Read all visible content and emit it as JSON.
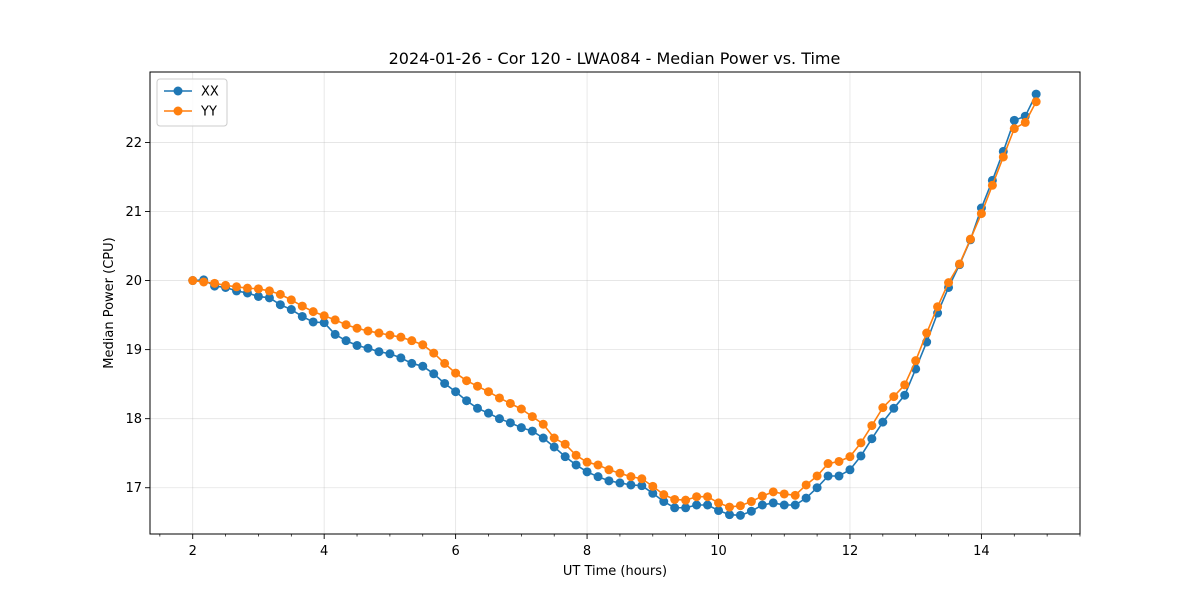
{
  "chart_data": {
    "type": "line",
    "title": "2024-01-26 - Cor 120 - LWA084 - Median Power vs. Time",
    "xlabel": "UT Time (hours)",
    "ylabel": "Median Power (CPU)",
    "xlim": [
      1.35,
      15.5
    ],
    "ylim": [
      16.33,
      23.02
    ],
    "xticks": [
      2,
      4,
      6,
      8,
      10,
      12,
      14
    ],
    "yticks": [
      17,
      18,
      19,
      20,
      21,
      22
    ],
    "grid": true,
    "legend_position": "top-left",
    "x": [
      2.0,
      2.167,
      2.333,
      2.5,
      2.667,
      2.833,
      3.0,
      3.167,
      3.333,
      3.5,
      3.667,
      3.833,
      4.0,
      4.167,
      4.333,
      4.5,
      4.667,
      4.833,
      5.0,
      5.167,
      5.333,
      5.5,
      5.667,
      5.833,
      6.0,
      6.167,
      6.333,
      6.5,
      6.667,
      6.833,
      7.0,
      7.167,
      7.333,
      7.5,
      7.667,
      7.833,
      8.0,
      8.167,
      8.333,
      8.5,
      8.667,
      8.833,
      9.0,
      9.167,
      9.333,
      9.5,
      9.667,
      9.833,
      10.0,
      10.167,
      10.333,
      10.5,
      10.667,
      10.833,
      11.0,
      11.167,
      11.333,
      11.5,
      11.667,
      11.833,
      12.0,
      12.167,
      12.333,
      12.5,
      12.667,
      12.833,
      13.0,
      13.167,
      13.333,
      13.5,
      13.667,
      13.833,
      14.0,
      14.167,
      14.333,
      14.5,
      14.667,
      14.833
    ],
    "series": [
      {
        "name": "XX",
        "color": "#1f77b4",
        "values": [
          20.0,
          20.01,
          19.92,
          19.9,
          19.85,
          19.82,
          19.77,
          19.75,
          19.65,
          19.58,
          19.48,
          19.4,
          19.39,
          19.22,
          19.13,
          19.06,
          19.02,
          18.97,
          18.94,
          18.88,
          18.8,
          18.76,
          18.65,
          18.51,
          18.39,
          18.26,
          18.15,
          18.08,
          18.0,
          17.94,
          17.87,
          17.82,
          17.72,
          17.59,
          17.45,
          17.33,
          17.23,
          17.16,
          17.1,
          17.07,
          17.04,
          17.03,
          16.92,
          16.8,
          16.71,
          16.71,
          16.75,
          16.75,
          16.67,
          16.61,
          16.6,
          16.66,
          16.75,
          16.78,
          16.75,
          16.75,
          16.85,
          17.0,
          17.17,
          17.17,
          17.26,
          17.46,
          17.71,
          17.95,
          18.15,
          18.34,
          18.72,
          19.11,
          19.53,
          19.9,
          20.23,
          20.59,
          21.05,
          21.45,
          21.87,
          22.32,
          22.38,
          22.7
        ]
      },
      {
        "name": "YY",
        "color": "#ff7f0e",
        "values": [
          20.0,
          19.98,
          19.96,
          19.93,
          19.91,
          19.89,
          19.88,
          19.85,
          19.8,
          19.72,
          19.63,
          19.55,
          19.49,
          19.43,
          19.36,
          19.31,
          19.27,
          19.24,
          19.21,
          19.18,
          19.13,
          19.07,
          18.95,
          18.8,
          18.66,
          18.55,
          18.47,
          18.39,
          18.3,
          18.22,
          18.14,
          18.03,
          17.92,
          17.72,
          17.63,
          17.47,
          17.37,
          17.33,
          17.26,
          17.21,
          17.16,
          17.13,
          17.02,
          16.9,
          16.83,
          16.82,
          16.87,
          16.87,
          16.78,
          16.72,
          16.74,
          16.8,
          16.88,
          16.94,
          16.91,
          16.89,
          17.04,
          17.17,
          17.35,
          17.38,
          17.45,
          17.65,
          17.9,
          18.16,
          18.32,
          18.49,
          18.84,
          19.24,
          19.62,
          19.97,
          20.24,
          20.6,
          20.97,
          21.38,
          21.79,
          22.2,
          22.29,
          22.59
        ]
      }
    ]
  }
}
